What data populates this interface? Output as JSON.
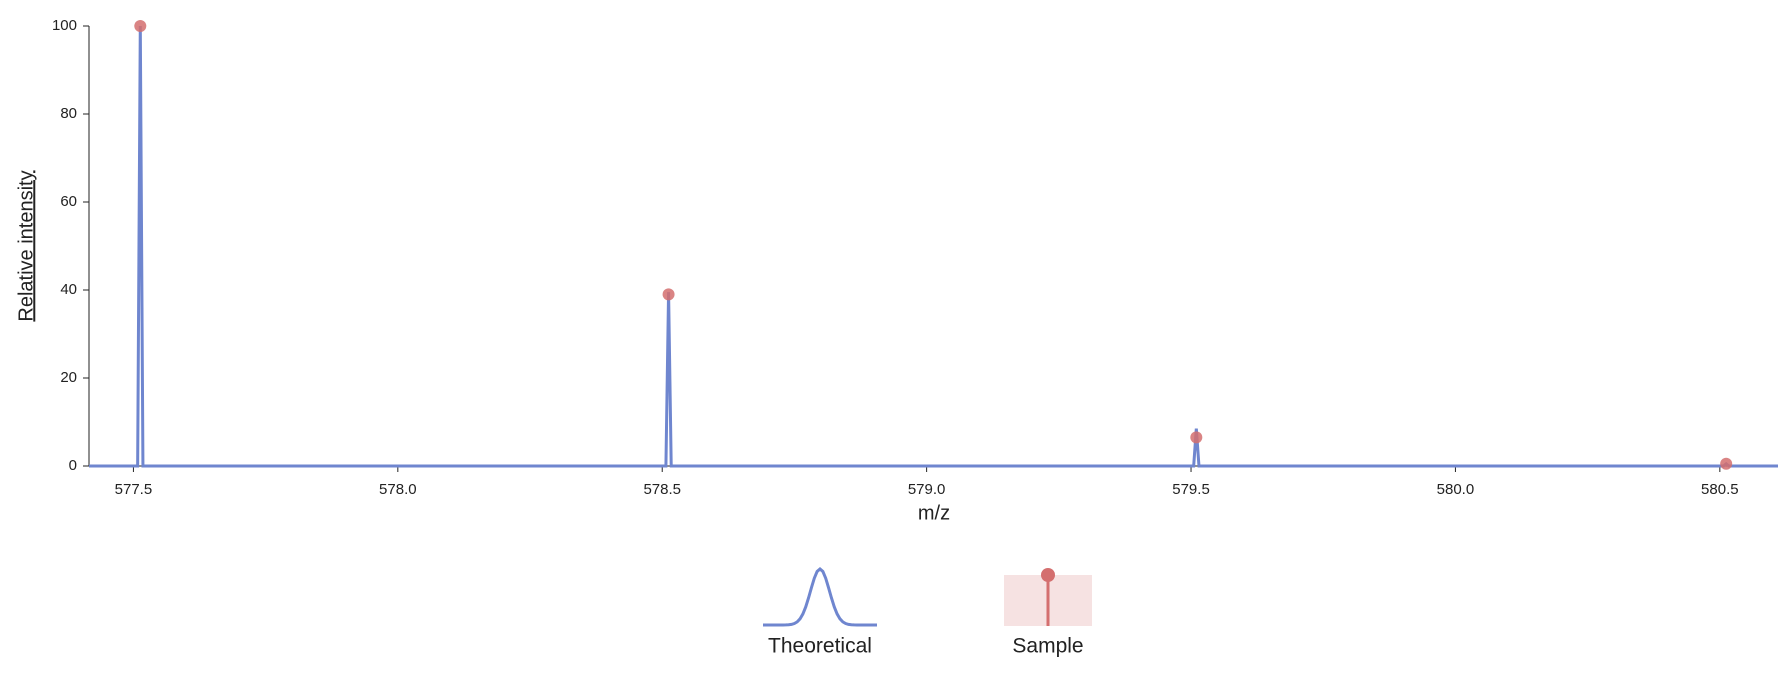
{
  "chart_data": {
    "type": "line",
    "xlabel": "m/z",
    "ylabel": "Relative intensity",
    "xlim": [
      577.416,
      580.61
    ],
    "ylim": [
      0,
      100
    ],
    "xticks": [
      577.5,
      {
        "value": 578,
        "label": "578.0"
      },
      578.5,
      {
        "value": 579,
        "label": "579.0"
      },
      579.5,
      {
        "value": 580,
        "label": "580.0"
      },
      580.5
    ],
    "yticks": [
      0,
      20,
      40,
      60,
      80,
      100
    ],
    "series": [
      {
        "name": "Theoretical",
        "color": "#6f86cf",
        "marker": "line",
        "x": [
          577.416,
          577.508,
          577.513,
          577.518,
          578.507,
          578.512,
          578.517,
          579.505,
          579.51,
          579.515,
          580.507,
          580.512,
          580.517,
          580.61
        ],
        "values": [
          0,
          0,
          100,
          0,
          0,
          39.5,
          0,
          0,
          8.5,
          0,
          0,
          0.5,
          0,
          0
        ]
      },
      {
        "name": "Sample",
        "color": "#d46f6f",
        "marker": "stem",
        "x": [
          577.513,
          578.512,
          579.51,
          580.512
        ],
        "values": [
          100,
          39,
          6.5,
          0.5
        ]
      }
    ]
  }
}
